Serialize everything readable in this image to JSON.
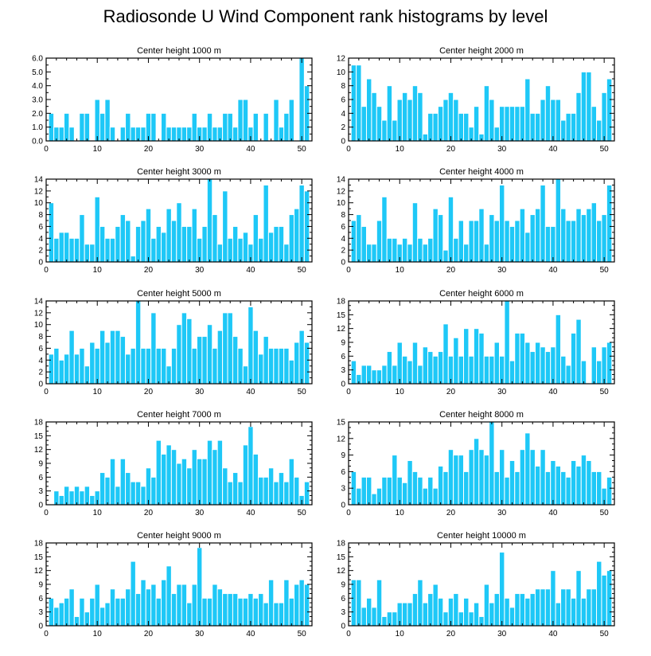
{
  "title": "Radiosonde U Wind Component rank histograms by level",
  "colors": {
    "bar": "#1ec8f7",
    "bar_edge": "#ffffff",
    "axis": "#000000",
    "background": "#ffffff"
  },
  "chart_data": [
    {
      "type": "bar",
      "title": "Center height 1000 m",
      "x_start": 1,
      "ylim": [
        0,
        6
      ],
      "yticks": [
        0,
        1,
        2,
        3,
        4,
        5,
        6
      ],
      "ytick_labels": [
        "0.0",
        "1.0",
        "2.0",
        "3.0",
        "4.0",
        "5.0",
        "6.0"
      ],
      "xlim": [
        0,
        52
      ],
      "xticks": [
        0,
        10,
        20,
        30,
        40,
        50
      ],
      "values": [
        2,
        1,
        1,
        2,
        1,
        0,
        2,
        2,
        0,
        3,
        2,
        3,
        1,
        0,
        1,
        2,
        1,
        1,
        1,
        2,
        2,
        0,
        2,
        1,
        1,
        1,
        1,
        1,
        2,
        1,
        1,
        2,
        1,
        1,
        2,
        2,
        1,
        3,
        3,
        1,
        2,
        0,
        2,
        0,
        3,
        1,
        2,
        3,
        0,
        6,
        4
      ]
    },
    {
      "type": "bar",
      "title": "Center height 2000 m",
      "x_start": 1,
      "ylim": [
        0,
        12
      ],
      "yticks": [
        0,
        2,
        4,
        6,
        8,
        10,
        12
      ],
      "xlim": [
        0,
        52
      ],
      "xticks": [
        0,
        10,
        20,
        30,
        40,
        50
      ],
      "values": [
        11,
        11,
        5,
        9,
        7,
        5,
        3,
        8,
        3,
        6,
        7,
        6,
        8,
        7,
        1,
        4,
        4,
        5,
        6,
        7,
        6,
        4,
        4,
        2,
        5,
        1,
        8,
        6,
        2,
        5,
        5,
        5,
        5,
        5,
        9,
        4,
        4,
        6,
        8,
        6,
        6,
        3,
        4,
        4,
        7,
        10,
        10,
        5,
        3,
        7,
        9
      ]
    },
    {
      "type": "bar",
      "title": "Center height 3000 m",
      "x_start": 1,
      "ylim": [
        0,
        14
      ],
      "yticks": [
        0,
        2,
        4,
        6,
        8,
        10,
        12,
        14
      ],
      "xlim": [
        0,
        52
      ],
      "xticks": [
        0,
        10,
        20,
        30,
        40,
        50
      ],
      "values": [
        10,
        4,
        5,
        5,
        4,
        4,
        8,
        3,
        3,
        11,
        6,
        4,
        4,
        6,
        8,
        7,
        1,
        6,
        7,
        9,
        4,
        6,
        5,
        9,
        7,
        10,
        6,
        6,
        9,
        4,
        6,
        14,
        8,
        3,
        12,
        4,
        6,
        4,
        5,
        3,
        8,
        4,
        13,
        5,
        6,
        6,
        3,
        8,
        9,
        13,
        12
      ]
    },
    {
      "type": "bar",
      "title": "Center height 4000 m",
      "x_start": 1,
      "ylim": [
        0,
        14
      ],
      "yticks": [
        0,
        2,
        4,
        6,
        8,
        10,
        12,
        14
      ],
      "xlim": [
        0,
        52
      ],
      "xticks": [
        0,
        10,
        20,
        30,
        40,
        50
      ],
      "values": [
        7,
        8,
        6,
        3,
        3,
        7,
        11,
        4,
        4,
        3,
        4,
        3,
        10,
        4,
        3,
        4,
        9,
        8,
        2,
        11,
        4,
        7,
        3,
        7,
        7,
        9,
        3,
        8,
        7,
        13,
        7,
        6,
        7,
        9,
        5,
        8,
        9,
        13,
        6,
        6,
        14,
        9,
        7,
        7,
        9,
        8,
        9,
        10,
        7,
        8,
        13
      ]
    },
    {
      "type": "bar",
      "title": "Center height 5000 m",
      "x_start": 1,
      "ylim": [
        0,
        14
      ],
      "yticks": [
        0,
        2,
        4,
        6,
        8,
        10,
        12,
        14
      ],
      "xlim": [
        0,
        52
      ],
      "xticks": [
        0,
        10,
        20,
        30,
        40,
        50
      ],
      "values": [
        5,
        6,
        4,
        5,
        9,
        5,
        6,
        3,
        7,
        6,
        9,
        7,
        9,
        9,
        8,
        5,
        6,
        14,
        6,
        6,
        12,
        6,
        6,
        3,
        6,
        10,
        12,
        11,
        6,
        8,
        8,
        10,
        6,
        9,
        12,
        12,
        8,
        6,
        3,
        13,
        9,
        5,
        8,
        6,
        6,
        6,
        6,
        4,
        7,
        9,
        7
      ]
    },
    {
      "type": "bar",
      "title": "Center height 6000 m",
      "x_start": 1,
      "ylim": [
        0,
        18
      ],
      "yticks": [
        0,
        3,
        6,
        9,
        12,
        15,
        18
      ],
      "xlim": [
        0,
        52
      ],
      "xticks": [
        0,
        10,
        20,
        30,
        40,
        50
      ],
      "values": [
        5,
        2,
        4,
        4,
        3,
        3,
        4,
        7,
        4,
        9,
        6,
        5,
        9,
        4,
        8,
        7,
        6,
        7,
        13,
        6,
        10,
        6,
        12,
        6,
        12,
        11,
        6,
        6,
        9,
        6,
        18,
        5,
        11,
        11,
        9,
        7,
        9,
        8,
        7,
        8,
        15,
        6,
        4,
        11,
        14,
        5,
        0,
        8,
        5,
        8,
        9
      ]
    },
    {
      "type": "bar",
      "title": "Center height 7000 m",
      "x_start": 1,
      "ylim": [
        0,
        18
      ],
      "yticks": [
        0,
        3,
        6,
        9,
        12,
        15,
        18
      ],
      "xlim": [
        0,
        52
      ],
      "xticks": [
        0,
        10,
        20,
        30,
        40,
        50
      ],
      "values": [
        0,
        3,
        2,
        4,
        3,
        4,
        3,
        4,
        2,
        3,
        7,
        6,
        10,
        4,
        10,
        7,
        5,
        5,
        4,
        8,
        6,
        14,
        11,
        13,
        12,
        9,
        10,
        8,
        12,
        10,
        10,
        14,
        12,
        14,
        8,
        5,
        7,
        5,
        13,
        17,
        11,
        6,
        6,
        8,
        5,
        7,
        5,
        10,
        6,
        2,
        5
      ]
    },
    {
      "type": "bar",
      "title": "Center height 8000 m",
      "x_start": 1,
      "ylim": [
        0,
        15
      ],
      "yticks": [
        0,
        3,
        6,
        9,
        12,
        15
      ],
      "xlim": [
        0,
        52
      ],
      "xticks": [
        0,
        10,
        20,
        30,
        40,
        50
      ],
      "values": [
        6,
        3,
        5,
        5,
        2,
        3,
        5,
        5,
        9,
        5,
        4,
        8,
        6,
        5,
        3,
        5,
        3,
        7,
        6,
        10,
        9,
        9,
        6,
        10,
        12,
        10,
        9,
        15,
        6,
        10,
        5,
        8,
        6,
        10,
        13,
        10,
        7,
        10,
        6,
        8,
        7,
        6,
        5,
        8,
        7,
        9,
        8,
        6,
        6,
        3,
        5
      ]
    },
    {
      "type": "bar",
      "title": "Center height 9000 m",
      "x_start": 1,
      "ylim": [
        0,
        18
      ],
      "yticks": [
        0,
        3,
        6,
        9,
        12,
        15,
        18
      ],
      "xlim": [
        0,
        52
      ],
      "xticks": [
        0,
        10,
        20,
        30,
        40,
        50
      ],
      "values": [
        6,
        4,
        5,
        6,
        8,
        2,
        6,
        3,
        6,
        9,
        4,
        5,
        8,
        6,
        6,
        8,
        14,
        7,
        10,
        8,
        9,
        6,
        10,
        13,
        7,
        9,
        9,
        5,
        9,
        17,
        6,
        6,
        9,
        8,
        7,
        7,
        7,
        6,
        6,
        7,
        6,
        7,
        5,
        10,
        5,
        5,
        10,
        6,
        9,
        10,
        9
      ]
    },
    {
      "type": "bar",
      "title": "Center height 10000 m",
      "x_start": 1,
      "ylim": [
        0,
        18
      ],
      "yticks": [
        0,
        3,
        6,
        9,
        12,
        15,
        18
      ],
      "xlim": [
        0,
        52
      ],
      "xticks": [
        0,
        10,
        20,
        30,
        40,
        50
      ],
      "values": [
        10,
        10,
        4,
        6,
        4,
        10,
        2,
        3,
        3,
        5,
        5,
        5,
        7,
        10,
        5,
        7,
        9,
        6,
        3,
        6,
        7,
        3,
        6,
        3,
        5,
        2,
        9,
        5,
        7,
        16,
        6,
        4,
        7,
        7,
        6,
        7,
        8,
        8,
        8,
        12,
        5,
        8,
        8,
        6,
        12,
        6,
        8,
        8,
        14,
        11,
        12
      ]
    }
  ]
}
